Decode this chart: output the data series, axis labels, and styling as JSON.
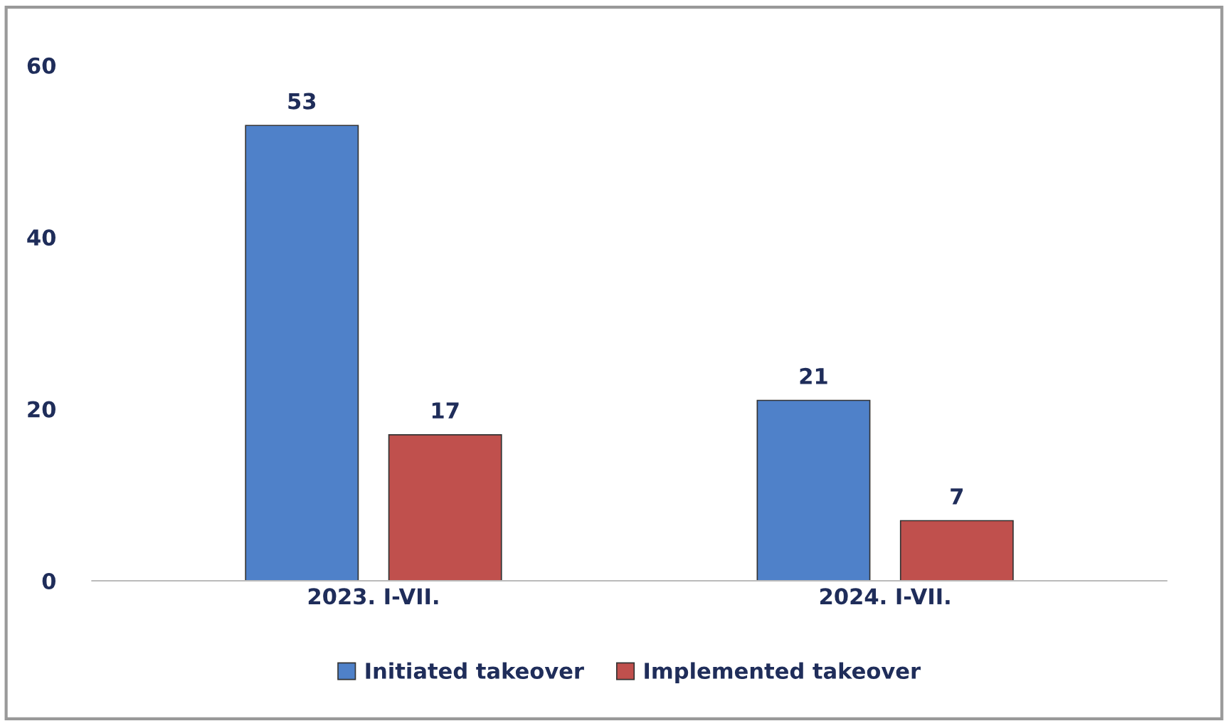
{
  "chart_data": {
    "type": "bar",
    "categories": [
      "2023. I-VII.",
      "2024. I-VII."
    ],
    "series": [
      {
        "name": "Initiated takeover",
        "color": "#4f81c9",
        "values": [
          53,
          21
        ]
      },
      {
        "name": "Implemented takeover",
        "color": "#c0504d",
        "values": [
          17,
          7
        ]
      }
    ],
    "ylim": [
      0,
      60
    ],
    "yticks": [
      0,
      20,
      40,
      60
    ],
    "grid": false,
    "legend": "bottom",
    "data_labels": true
  }
}
